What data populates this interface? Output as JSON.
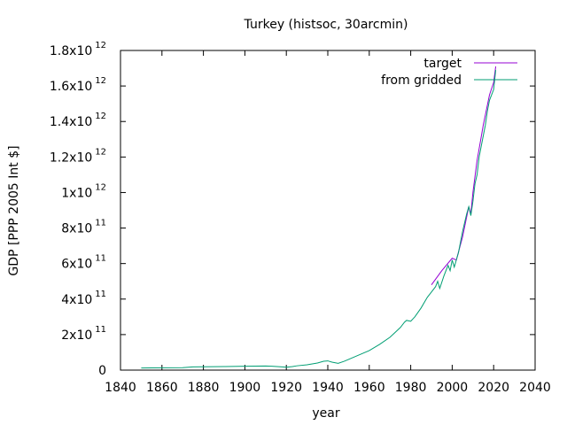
{
  "chart_data": {
    "type": "line",
    "title": "Turkey (histsoc, 30arcmin)",
    "xlabel": "year",
    "ylabel": "GDP [PPP 2005 Int $]",
    "xlim": [
      1840,
      2040
    ],
    "ylim": [
      0,
      1800000000000
    ],
    "grid": false,
    "legend_position": "top-right",
    "x_ticks": [
      {
        "value": 1840,
        "label": "1840"
      },
      {
        "value": 1860,
        "label": "1860"
      },
      {
        "value": 1880,
        "label": "1880"
      },
      {
        "value": 1900,
        "label": "1900"
      },
      {
        "value": 1920,
        "label": "1920"
      },
      {
        "value": 1940,
        "label": "1940"
      },
      {
        "value": 1960,
        "label": "1960"
      },
      {
        "value": 1980,
        "label": "1980"
      },
      {
        "value": 2000,
        "label": "2000"
      },
      {
        "value": 2020,
        "label": "2020"
      },
      {
        "value": 2040,
        "label": "2040"
      }
    ],
    "y_ticks": [
      {
        "value": 0,
        "mant": "0",
        "exp": ""
      },
      {
        "value": 200000000000,
        "mant": "2x10",
        "exp": "11"
      },
      {
        "value": 400000000000,
        "mant": "4x10",
        "exp": "11"
      },
      {
        "value": 600000000000,
        "mant": "6x10",
        "exp": "11"
      },
      {
        "value": 800000000000,
        "mant": "8x10",
        "exp": "11"
      },
      {
        "value": 1000000000000,
        "mant": "1x10",
        "exp": "12"
      },
      {
        "value": 1200000000000,
        "mant": "1.2x10",
        "exp": "12"
      },
      {
        "value": 1400000000000,
        "mant": "1.4x10",
        "exp": "12"
      },
      {
        "value": 1600000000000,
        "mant": "1.6x10",
        "exp": "12"
      },
      {
        "value": 1800000000000,
        "mant": "1.8x10",
        "exp": "12"
      }
    ],
    "series": [
      {
        "name": "target",
        "color": "#9400d3",
        "x": [
          1990,
          1995,
          2000,
          2002,
          2005,
          2008,
          2009,
          2010,
          2012,
          2015,
          2018,
          2020,
          2021
        ],
        "y": [
          480000000000,
          560000000000,
          630000000000,
          620000000000,
          750000000000,
          920000000000,
          880000000000,
          1000000000000,
          1180000000000,
          1380000000000,
          1550000000000,
          1620000000000,
          1710000000000
        ]
      },
      {
        "name": "from gridded",
        "color": "#009e73",
        "x": [
          1850,
          1860,
          1870,
          1875,
          1880,
          1890,
          1900,
          1910,
          1913,
          1918,
          1920,
          1923,
          1925,
          1930,
          1935,
          1938,
          1940,
          1942,
          1945,
          1948,
          1950,
          1955,
          1960,
          1965,
          1970,
          1975,
          1977,
          1978,
          1980,
          1982,
          1985,
          1988,
          1990,
          1992,
          1993,
          1994,
          1996,
          1998,
          1999,
          2000,
          2001,
          2002,
          2003,
          2004,
          2005,
          2006,
          2007,
          2008,
          2009,
          2010,
          2011,
          2012,
          2013,
          2014,
          2015,
          2016,
          2017,
          2018,
          2019,
          2020,
          2021
        ],
        "y": [
          12000000000,
          13000000000,
          14000000000,
          18000000000,
          19000000000,
          20000000000,
          22000000000,
          23000000000,
          22000000000,
          18000000000,
          16000000000,
          20000000000,
          24000000000,
          30000000000,
          40000000000,
          50000000000,
          52000000000,
          45000000000,
          38000000000,
          50000000000,
          60000000000,
          85000000000,
          110000000000,
          145000000000,
          185000000000,
          240000000000,
          270000000000,
          280000000000,
          275000000000,
          300000000000,
          350000000000,
          410000000000,
          440000000000,
          470000000000,
          500000000000,
          460000000000,
          530000000000,
          590000000000,
          560000000000,
          620000000000,
          580000000000,
          620000000000,
          660000000000,
          720000000000,
          780000000000,
          830000000000,
          880000000000,
          920000000000,
          870000000000,
          950000000000,
          1050000000000,
          1100000000000,
          1200000000000,
          1260000000000,
          1320000000000,
          1380000000000,
          1460000000000,
          1520000000000,
          1550000000000,
          1580000000000,
          1690000000000
        ]
      }
    ]
  }
}
